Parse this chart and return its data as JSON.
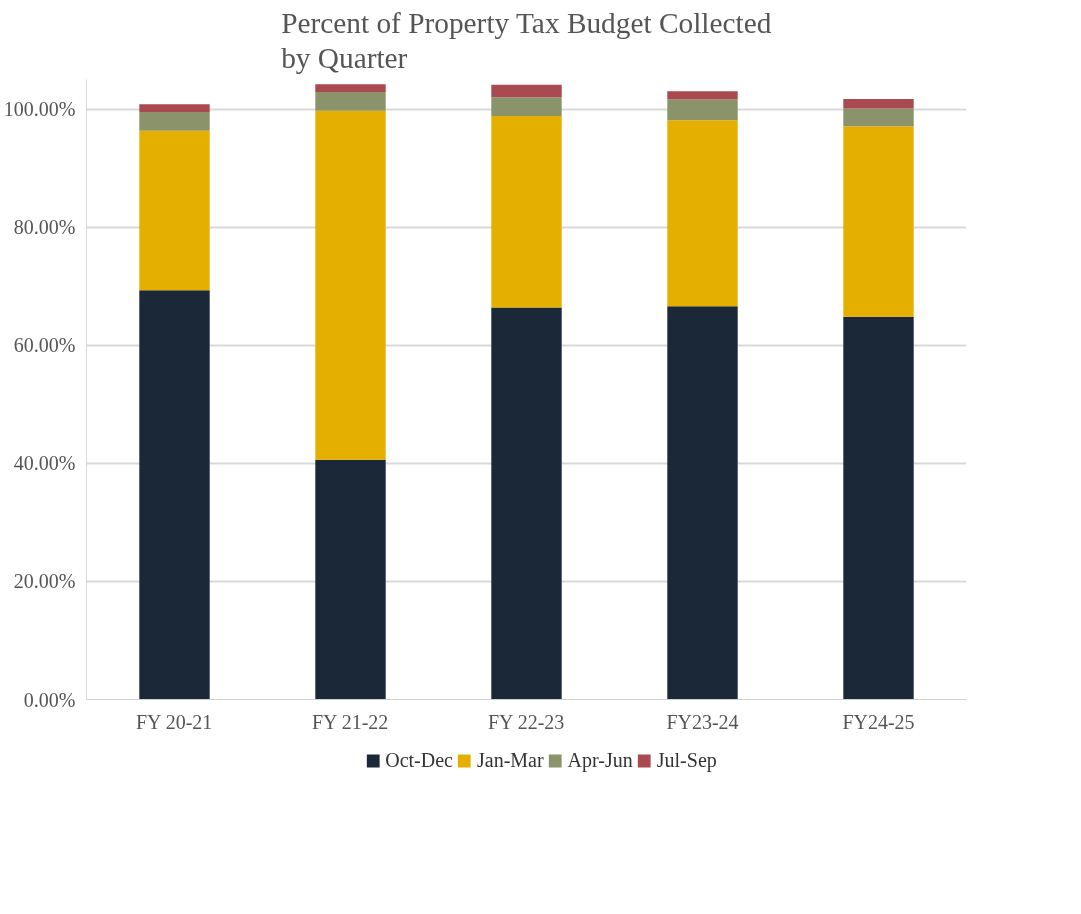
{
  "chart_data": {
    "type": "bar",
    "stacked": true,
    "title": "Percent of Property Tax Budget Collected\nby Quarter",
    "categories": [
      "FY 20-21",
      "FY 21-22",
      "FY 22-23",
      "FY23-24",
      "FY24-25"
    ],
    "series": [
      {
        "name": "Oct-Dec",
        "color": "#1b2838",
        "values": [
          69.3,
          40.6,
          66.4,
          66.6,
          64.8
        ]
      },
      {
        "name": "Jan-Mar",
        "color": "#e5af00",
        "values": [
          27.0,
          59.1,
          32.4,
          31.5,
          32.3
        ]
      },
      {
        "name": "Apr-Jun",
        "color": "#8b936b",
        "values": [
          3.2,
          3.2,
          3.2,
          3.5,
          3.0
        ]
      },
      {
        "name": "Jul-Sep",
        "color": "#a84a50",
        "values": [
          1.3,
          1.3,
          2.1,
          1.4,
          1.6
        ]
      }
    ],
    "ylim": [
      0,
      105
    ],
    "yticks": [
      {
        "value": 0,
        "label": "0.00%"
      },
      {
        "value": 20,
        "label": "20.00%"
      },
      {
        "value": 40,
        "label": "40.00%"
      },
      {
        "value": 60,
        "label": "60.00%"
      },
      {
        "value": 80,
        "label": "80.00%"
      },
      {
        "value": 100,
        "label": "100.00%"
      }
    ],
    "grid": "y",
    "legend": "bottom"
  }
}
